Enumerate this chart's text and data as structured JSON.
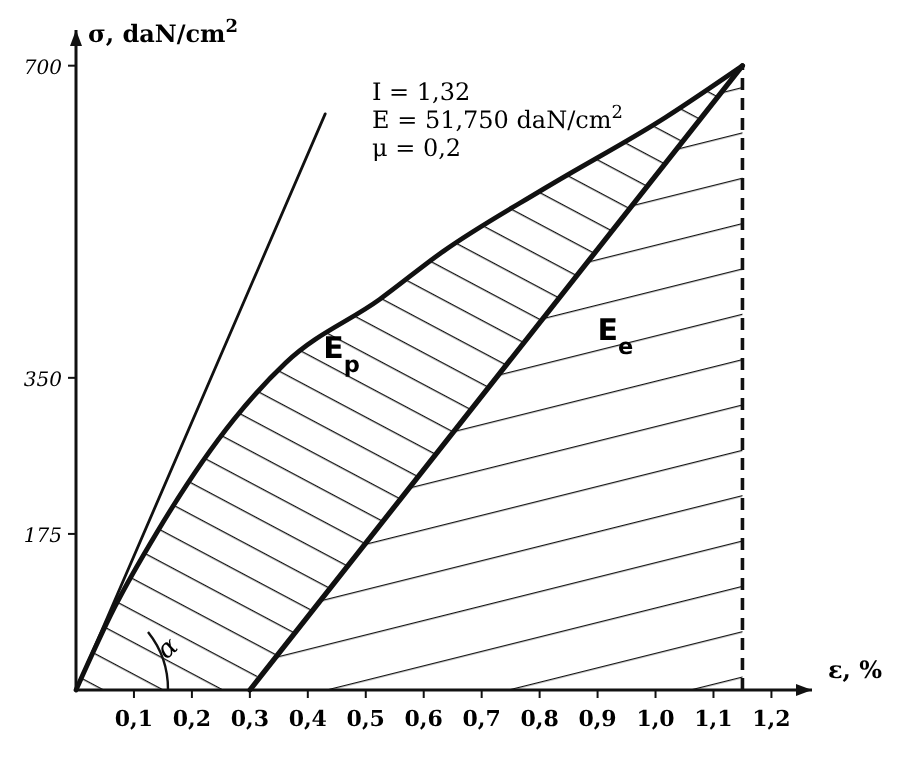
{
  "chart_data": {
    "type": "line",
    "xlabel": "ε, %",
    "ylabel": "σ, daN/cm$^{2}$",
    "xlim": [
      0,
      1.27
    ],
    "ylim": [
      0,
      740
    ],
    "xticks": [
      {
        "value": 0.1,
        "label": "0,1"
      },
      {
        "value": 0.2,
        "label": "0,2"
      },
      {
        "value": 0.3,
        "label": "0,3"
      },
      {
        "value": 0.4,
        "label": "0,4"
      },
      {
        "value": 0.5,
        "label": "0,5"
      },
      {
        "value": 0.6,
        "label": "0,6"
      },
      {
        "value": 0.7,
        "label": "0,7"
      },
      {
        "value": 0.8,
        "label": "0,8"
      },
      {
        "value": 0.9,
        "label": "0,9"
      },
      {
        "value": 1.0,
        "label": "1,0"
      },
      {
        "value": 1.1,
        "label": "1,1"
      },
      {
        "value": 1.2,
        "label": "1,2"
      }
    ],
    "yticks": [
      175,
      350,
      700
    ],
    "grid": false,
    "marker": "none",
    "line_style": "solid",
    "series": [
      {
        "name": "E$_{p}$",
        "color": "#111111",
        "x": [
          0,
          0.066,
          0.138,
          0.272,
          0.362,
          0.524,
          0.634,
          0.81,
          1.017,
          1.15
        ],
        "values": [
          0,
          92,
          175,
          303,
          367,
          438,
          492,
          563,
          642,
          700
        ],
        "lower": [
          0,
          0,
          0,
          0,
          51,
          184,
          275,
          420,
          590,
          700
        ],
        "upper": [
          0,
          92,
          175,
          303,
          367,
          438,
          492,
          563,
          642,
          700
        ]
      },
      {
        "name": "E$_{e}$",
        "type": "area",
        "color": "#111111",
        "x": [
          0.3,
          1.15
        ],
        "values": [
          0,
          700
        ]
      },
      {
        "color": "#111111",
        "x": [
          0,
          0.43
        ],
        "values": [
          0,
          646
        ]
      }
    ],
    "ref_lines": [
      {
        "axis": "x",
        "value": 1.15,
        "color": "#111111",
        "line_style": "dashed"
      }
    ],
    "annotations": [
      "I = 1,32",
      "E = 51,750 daN/cm$^{2}$",
      "μ = 0,2",
      "α"
    ]
  }
}
